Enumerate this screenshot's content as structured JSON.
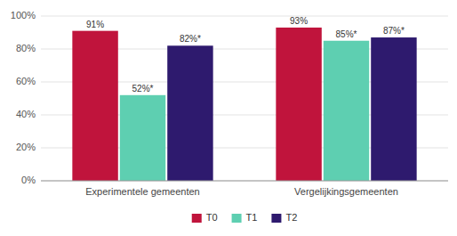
{
  "chart_data": {
    "type": "bar",
    "categories": [
      "Experimentele gemeenten",
      "Vergelijkingsgemeenten"
    ],
    "series": [
      {
        "name": "T0",
        "color": "#C0143C",
        "values": [
          91,
          93
        ],
        "value_labels": [
          "91%",
          "93%"
        ]
      },
      {
        "name": "T1",
        "color": "#5ECFB1",
        "values": [
          52,
          85
        ],
        "value_labels": [
          "52%*",
          "85%*"
        ]
      },
      {
        "name": "T2",
        "color": "#2E1A6E",
        "values": [
          82,
          87
        ],
        "value_labels": [
          "82%*",
          "87%*"
        ]
      }
    ],
    "ylim": [
      0,
      100
    ],
    "yticks": [
      {
        "value": 0,
        "label": "0%"
      },
      {
        "value": 20,
        "label": "20%"
      },
      {
        "value": 40,
        "label": "40%"
      },
      {
        "value": 60,
        "label": "60%"
      },
      {
        "value": 80,
        "label": "80%"
      },
      {
        "value": 100,
        "label": "100%"
      }
    ],
    "grid": true,
    "data_labels": true,
    "legend": "bottom"
  }
}
